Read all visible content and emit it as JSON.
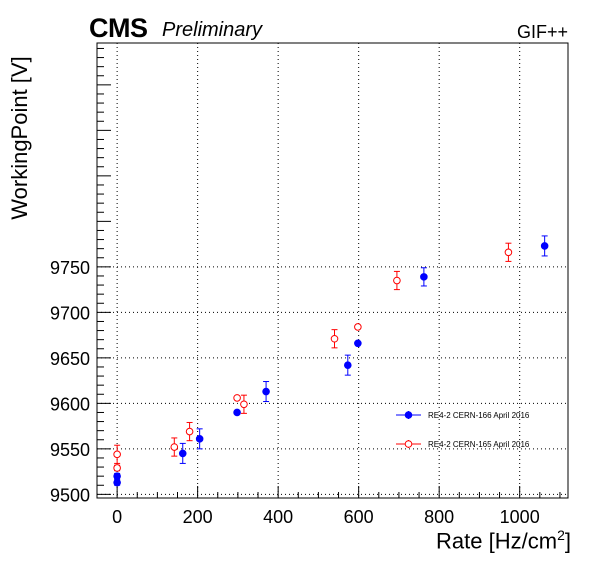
{
  "header": {
    "experiment": "CMS",
    "status": "Preliminary",
    "facility": "GIF++"
  },
  "chart_data": {
    "type": "scatter",
    "title": "",
    "xlabel": "Rate [Hz/cm",
    "xlabel_sup": "2",
    "xlabel_tail": "]",
    "ylabel": "WorkingPoint [V]",
    "xlim": [
      -50,
      1120
    ],
    "ylim": [
      9496,
      9996
    ],
    "xticks": [
      0,
      200,
      400,
      600,
      800,
      1000
    ],
    "yticks": [
      9500,
      9550,
      9600,
      9650,
      9700,
      9750
    ],
    "grid": true,
    "legend_position": "lower-right",
    "series": [
      {
        "name": "RE4-2 CERN-166 April 2016",
        "color": "#0000ff",
        "marker": "filled-circle",
        "points": [
          {
            "x": 0,
            "y": 9513,
            "err": 3
          },
          {
            "x": 0,
            "y": 9520,
            "err": 3
          },
          {
            "x": 163,
            "y": 9545,
            "err": 11
          },
          {
            "x": 205,
            "y": 9561,
            "err": 11
          },
          {
            "x": 298,
            "y": 9590,
            "err": 0
          },
          {
            "x": 370,
            "y": 9613,
            "err": 11
          },
          {
            "x": 573,
            "y": 9642,
            "err": 11
          },
          {
            "x": 598,
            "y": 9666,
            "err": 0
          },
          {
            "x": 762,
            "y": 9739,
            "err": 10
          },
          {
            "x": 1062,
            "y": 9773,
            "err": 11
          }
        ]
      },
      {
        "name": "RE4-2 CERN-165 April 2016",
        "color": "#ff0000",
        "marker": "open-circle",
        "points": [
          {
            "x": 0,
            "y": 9529,
            "err": 3
          },
          {
            "x": 0,
            "y": 9544,
            "err": 10
          },
          {
            "x": 142,
            "y": 9552,
            "err": 10
          },
          {
            "x": 180,
            "y": 9569,
            "err": 10
          },
          {
            "x": 298,
            "y": 9606,
            "err": 0
          },
          {
            "x": 315,
            "y": 9599,
            "err": 10
          },
          {
            "x": 540,
            "y": 9671,
            "err": 10
          },
          {
            "x": 598,
            "y": 9684,
            "err": 0
          },
          {
            "x": 695,
            "y": 9735,
            "err": 10
          },
          {
            "x": 972,
            "y": 9766,
            "err": 10
          }
        ]
      }
    ]
  }
}
